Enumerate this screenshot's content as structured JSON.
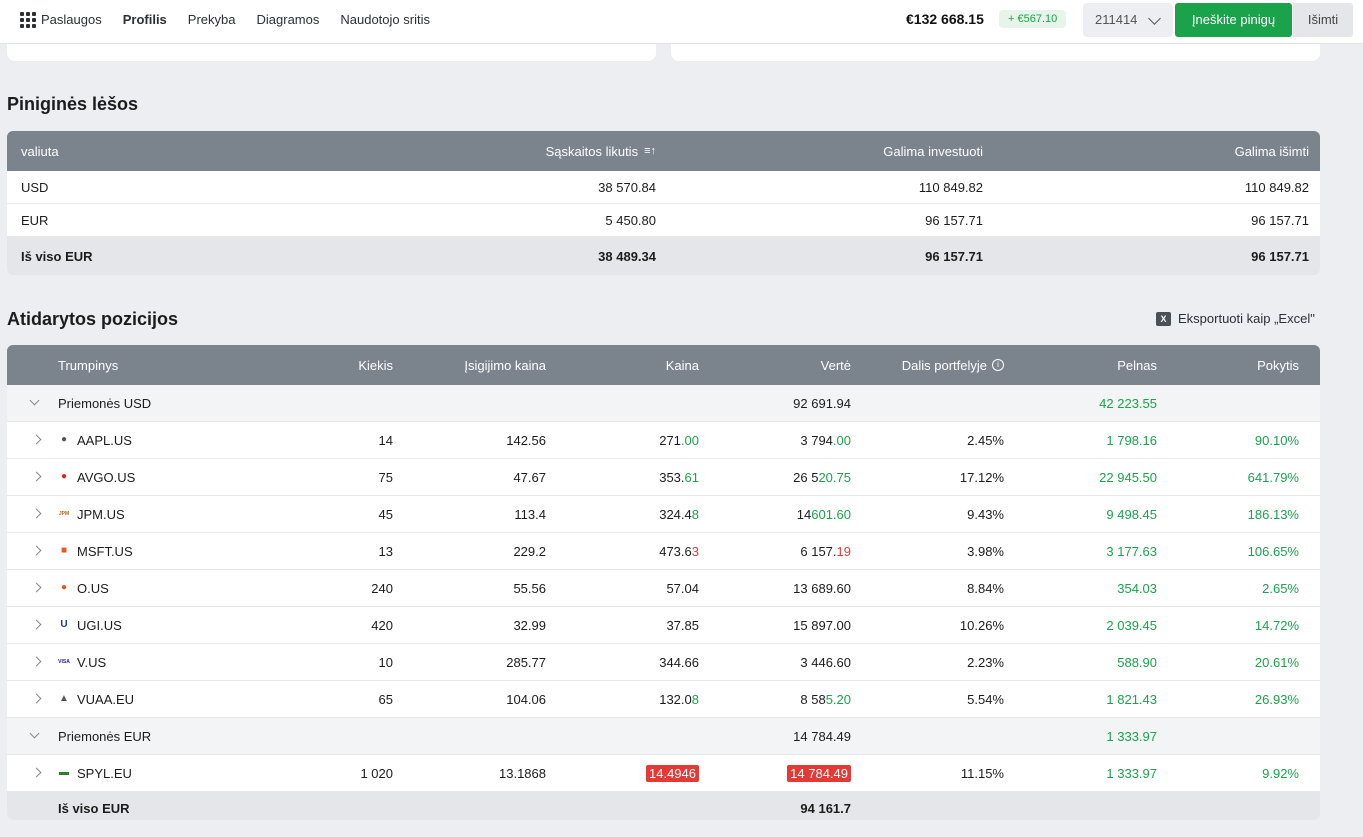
{
  "nav": {
    "items": [
      "Paslaugos",
      "Profilis",
      "Prekyba",
      "Diagramos",
      "Naudotojo sritis"
    ],
    "balance": "€132 668.15",
    "change": "+ €567.10",
    "account": "211414",
    "deposit_label": "Įneškite pinigų",
    "withdraw_label": "Išimti"
  },
  "cash": {
    "title": "Piniginės lėšos",
    "headers": [
      "valiuta",
      "Sąskaitos likutis",
      "Galima investuoti",
      "Galima išimti"
    ],
    "rows": [
      [
        "USD",
        "38 570.84",
        "110 849.82",
        "110 849.82"
      ],
      [
        "EUR",
        "5 450.80",
        "96 157.71",
        "96 157.71"
      ]
    ],
    "total": [
      "Iš viso EUR",
      "38 489.34",
      "96 157.71",
      "96 157.71"
    ]
  },
  "positions": {
    "title": "Atidarytos pozicijos",
    "export_label": "Eksportuoti kaip „Excel\"",
    "headers": [
      "Trumpinys",
      "Kiekis",
      "Įsigijimo kaina",
      "Kaina",
      "Vertė",
      "Dalis portfelyje",
      "Pelnas",
      "Pokytis"
    ],
    "groups": [
      {
        "name": "Priemonės USD",
        "value": "92 691.94",
        "profit": "42 223.55",
        "rows": [
          {
            "ticker": "AAPL.US",
            "qty": "14",
            "buy": "142.56",
            "price_a": "271",
            "price_b": ".00",
            "price_cls": "green",
            "value_a": "3 794",
            "value_b": ".00",
            "value_cls": "green",
            "share": "2.45%",
            "profit": "1 798.16",
            "change": "90.10%"
          },
          {
            "ticker": "AVGO.US",
            "qty": "75",
            "buy": "47.67",
            "price_a": "353.",
            "price_b": "61",
            "price_cls": "green",
            "value_a": "26 5",
            "value_b": "20.75",
            "value_cls": "green",
            "share": "17.12%",
            "profit": "22 945.50",
            "change": "641.79%"
          },
          {
            "ticker": "JPM.US",
            "qty": "45",
            "buy": "113.4",
            "price_a": "324.4",
            "price_b": "8",
            "price_cls": "green",
            "value_a": "14 ",
            "value_b": "601.60",
            "value_cls": "green",
            "share": "9.43%",
            "profit": "9 498.45",
            "change": "186.13%"
          },
          {
            "ticker": "MSFT.US",
            "qty": "13",
            "buy": "229.2",
            "price_a": "473.6",
            "price_b": "3",
            "price_cls": "red",
            "value_a": "6 157.",
            "value_b": "19",
            "value_cls": "red",
            "share": "3.98%",
            "profit": "3 177.63",
            "change": "106.65%"
          },
          {
            "ticker": "O.US",
            "qty": "240",
            "buy": "55.56",
            "price_a": "57.04",
            "price_b": "",
            "price_cls": "",
            "value_a": "13 689.60",
            "value_b": "",
            "value_cls": "",
            "share": "8.84%",
            "profit": "354.03",
            "change": "2.65%"
          },
          {
            "ticker": "UGI.US",
            "qty": "420",
            "buy": "32.99",
            "price_a": "37.85",
            "price_b": "",
            "price_cls": "",
            "value_a": "15 897.00",
            "value_b": "",
            "value_cls": "",
            "share": "10.26%",
            "profit": "2 039.45",
            "change": "14.72%"
          },
          {
            "ticker": "V.US",
            "qty": "10",
            "buy": "285.77",
            "price_a": "344.66",
            "price_b": "",
            "price_cls": "",
            "value_a": "3 446.60",
            "value_b": "",
            "value_cls": "",
            "share": "2.23%",
            "profit": "588.90",
            "change": "20.61%"
          },
          {
            "ticker": "VUAA.EU",
            "qty": "65",
            "buy": "104.06",
            "price_a": "132.0",
            "price_b": "8",
            "price_cls": "green",
            "value_a": "8 58",
            "value_b": "5.20",
            "value_cls": "green",
            "share": "5.54%",
            "profit": "1 821.43",
            "change": "26.93%"
          }
        ]
      },
      {
        "name": "Priemonės EUR",
        "value": "14 784.49",
        "profit": "1 333.97",
        "rows": [
          {
            "ticker": "SPYL.EU",
            "qty": "1 020",
            "buy": "13.1868",
            "price_a": "14.4946",
            "price_b": "",
            "price_cls": "badge",
            "value_a": "14 784.49",
            "value_b": "",
            "value_cls": "badge",
            "share": "11.15%",
            "profit": "1 333.97",
            "change": "9.92%"
          }
        ]
      }
    ],
    "total_label": "Iš viso EUR",
    "total_value": "94 161.7"
  },
  "icons": [
    "grid-icon",
    "chevron-down-icon",
    "sort-icon",
    "info-icon",
    "excel-icon",
    "chevron-right-icon"
  ]
}
